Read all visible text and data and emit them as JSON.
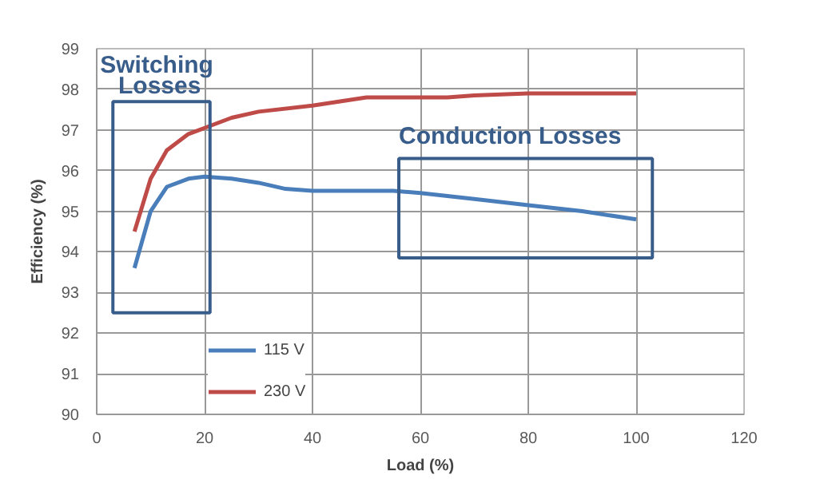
{
  "chart_data": {
    "type": "line",
    "xlabel": "Load (%)",
    "ylabel": "Efficiency (%)",
    "xlim": [
      0,
      120
    ],
    "xticks": [
      0,
      20,
      40,
      60,
      80,
      100,
      120
    ],
    "ylim": [
      90,
      99
    ],
    "yticks": [
      90,
      91,
      92,
      93,
      94,
      95,
      96,
      97,
      98,
      99
    ],
    "grid": true,
    "legend": "bottom left",
    "line_style": "solid",
    "annotations": [
      "Switching Losses",
      "Conduction Losses"
    ],
    "series": [
      {
        "name": "115 V",
        "color": "#4a7ebb",
        "x": [
          7,
          10,
          13,
          17,
          20,
          25,
          30,
          35,
          40,
          50,
          55,
          60,
          70,
          80,
          90,
          100
        ],
        "values": [
          93.6,
          95.0,
          95.6,
          95.8,
          95.85,
          95.8,
          95.7,
          95.55,
          95.5,
          95.5,
          95.5,
          95.45,
          95.3,
          95.15,
          95.0,
          94.8
        ]
      },
      {
        "name": "230 V",
        "color": "#be4b48",
        "x": [
          7,
          10,
          13,
          17,
          20,
          25,
          30,
          40,
          50,
          60,
          65,
          70,
          80,
          100
        ],
        "values": [
          94.5,
          95.8,
          96.5,
          96.9,
          97.05,
          97.3,
          97.45,
          97.6,
          97.8,
          97.8,
          97.8,
          97.85,
          97.9,
          97.9
        ]
      }
    ]
  }
}
